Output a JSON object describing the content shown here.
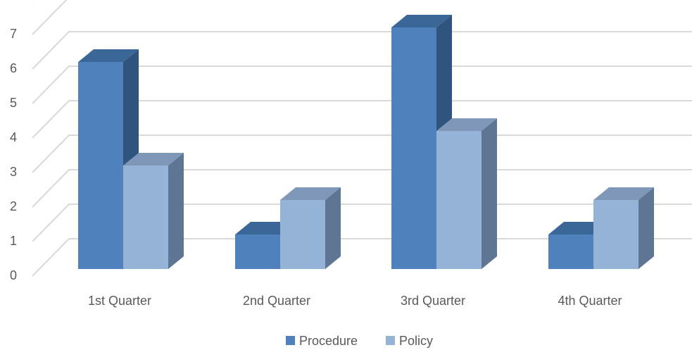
{
  "chart_data": {
    "type": "bar",
    "categories": [
      "1st Quarter",
      "2nd Quarter",
      "3rd Quarter",
      "4th Quarter"
    ],
    "series": [
      {
        "name": "Procedure",
        "values": [
          6,
          1,
          7,
          1
        ],
        "color": "#4f81bd",
        "side_color": "#2f557f",
        "top_color": "#3a6797"
      },
      {
        "name": "Policy",
        "values": [
          3,
          2,
          4,
          2
        ],
        "color": "#95b3d7",
        "side_color": "#5e7594",
        "top_color": "#7f97b8"
      }
    ],
    "ylim": [
      0,
      7
    ],
    "yticks": [
      "0",
      "1",
      "2",
      "3",
      "4",
      "5",
      "6",
      "7"
    ],
    "title": "",
    "xlabel": "",
    "ylabel": "",
    "grid": true,
    "legend": "bottom",
    "gridline_color": "#d9d9d9"
  }
}
